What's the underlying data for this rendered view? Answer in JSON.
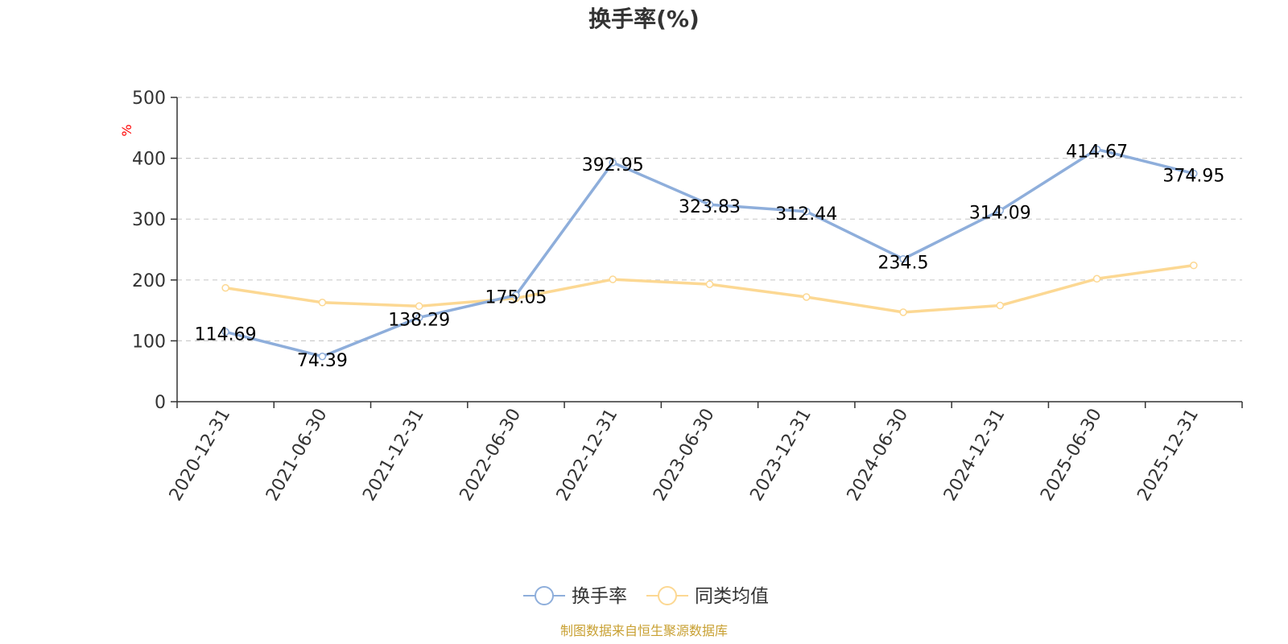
{
  "chart_data": {
    "type": "line",
    "title": "换手率(%)",
    "ylabel": "%",
    "categories": [
      "2020-12-31",
      "2021-06-30",
      "2021-12-31",
      "2022-06-30",
      "2022-12-31",
      "2023-06-30",
      "2023-12-31",
      "2024-06-30",
      "2024-12-31",
      "2025-06-30",
      "2025-12-31"
    ],
    "ylim": [
      0,
      500
    ],
    "yticks": [
      0,
      100,
      200,
      300,
      400,
      500
    ],
    "grid": true,
    "legend_position": "bottom",
    "series": [
      {
        "name": "换手率",
        "color": "#8eaedb",
        "values": [
          114.69,
          74.39,
          138.29,
          175.05,
          392.95,
          323.83,
          312.44,
          234.5,
          314.09,
          414.67,
          374.95
        ],
        "labels": [
          "114.69",
          "74.39",
          "138.29",
          "175.05",
          "392.95",
          "323.83",
          "312.44",
          "234.5",
          "314.09",
          "414.67",
          "374.95"
        ]
      },
      {
        "name": "同类均值",
        "color": "#fcd893",
        "values": [
          187,
          163,
          157,
          170,
          201,
          193,
          172,
          147,
          158,
          202,
          224
        ]
      }
    ]
  },
  "source_text": "制图数据来自恒生聚源数据库",
  "colors": {
    "axis": "#333333",
    "grid": "#cccccc",
    "ylabel": "#ff0000",
    "source": "#c8a032",
    "text": "#333333"
  }
}
